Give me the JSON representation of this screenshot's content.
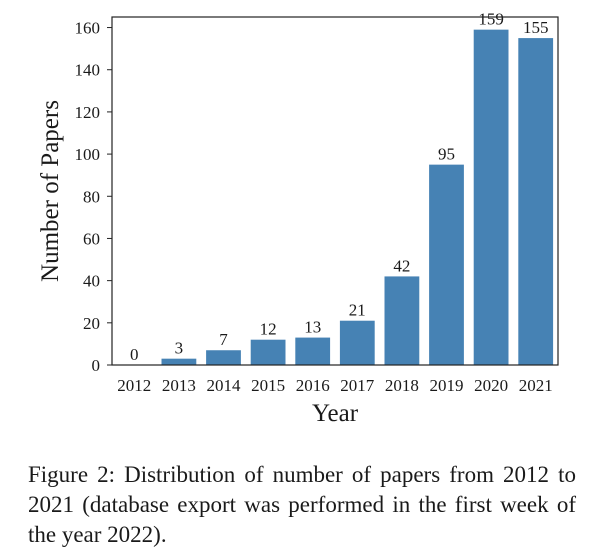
{
  "chart_data": {
    "type": "bar",
    "categories": [
      "2012",
      "2013",
      "2014",
      "2015",
      "2016",
      "2017",
      "2018",
      "2019",
      "2020",
      "2021"
    ],
    "values": [
      0,
      3,
      7,
      12,
      13,
      21,
      42,
      95,
      159,
      155
    ],
    "xlabel": "Year",
    "ylabel": "Number of Papers",
    "ylim": [
      0,
      165
    ],
    "yticks": [
      0,
      20,
      40,
      60,
      80,
      100,
      120,
      140,
      160
    ],
    "grid": false,
    "bar_color": "#4682b4",
    "data_labels": true
  },
  "caption": {
    "text": "Figure 2: Distribution of number of papers from 2012 to 2021 (database export was performed in the first week of the year 2022)."
  }
}
